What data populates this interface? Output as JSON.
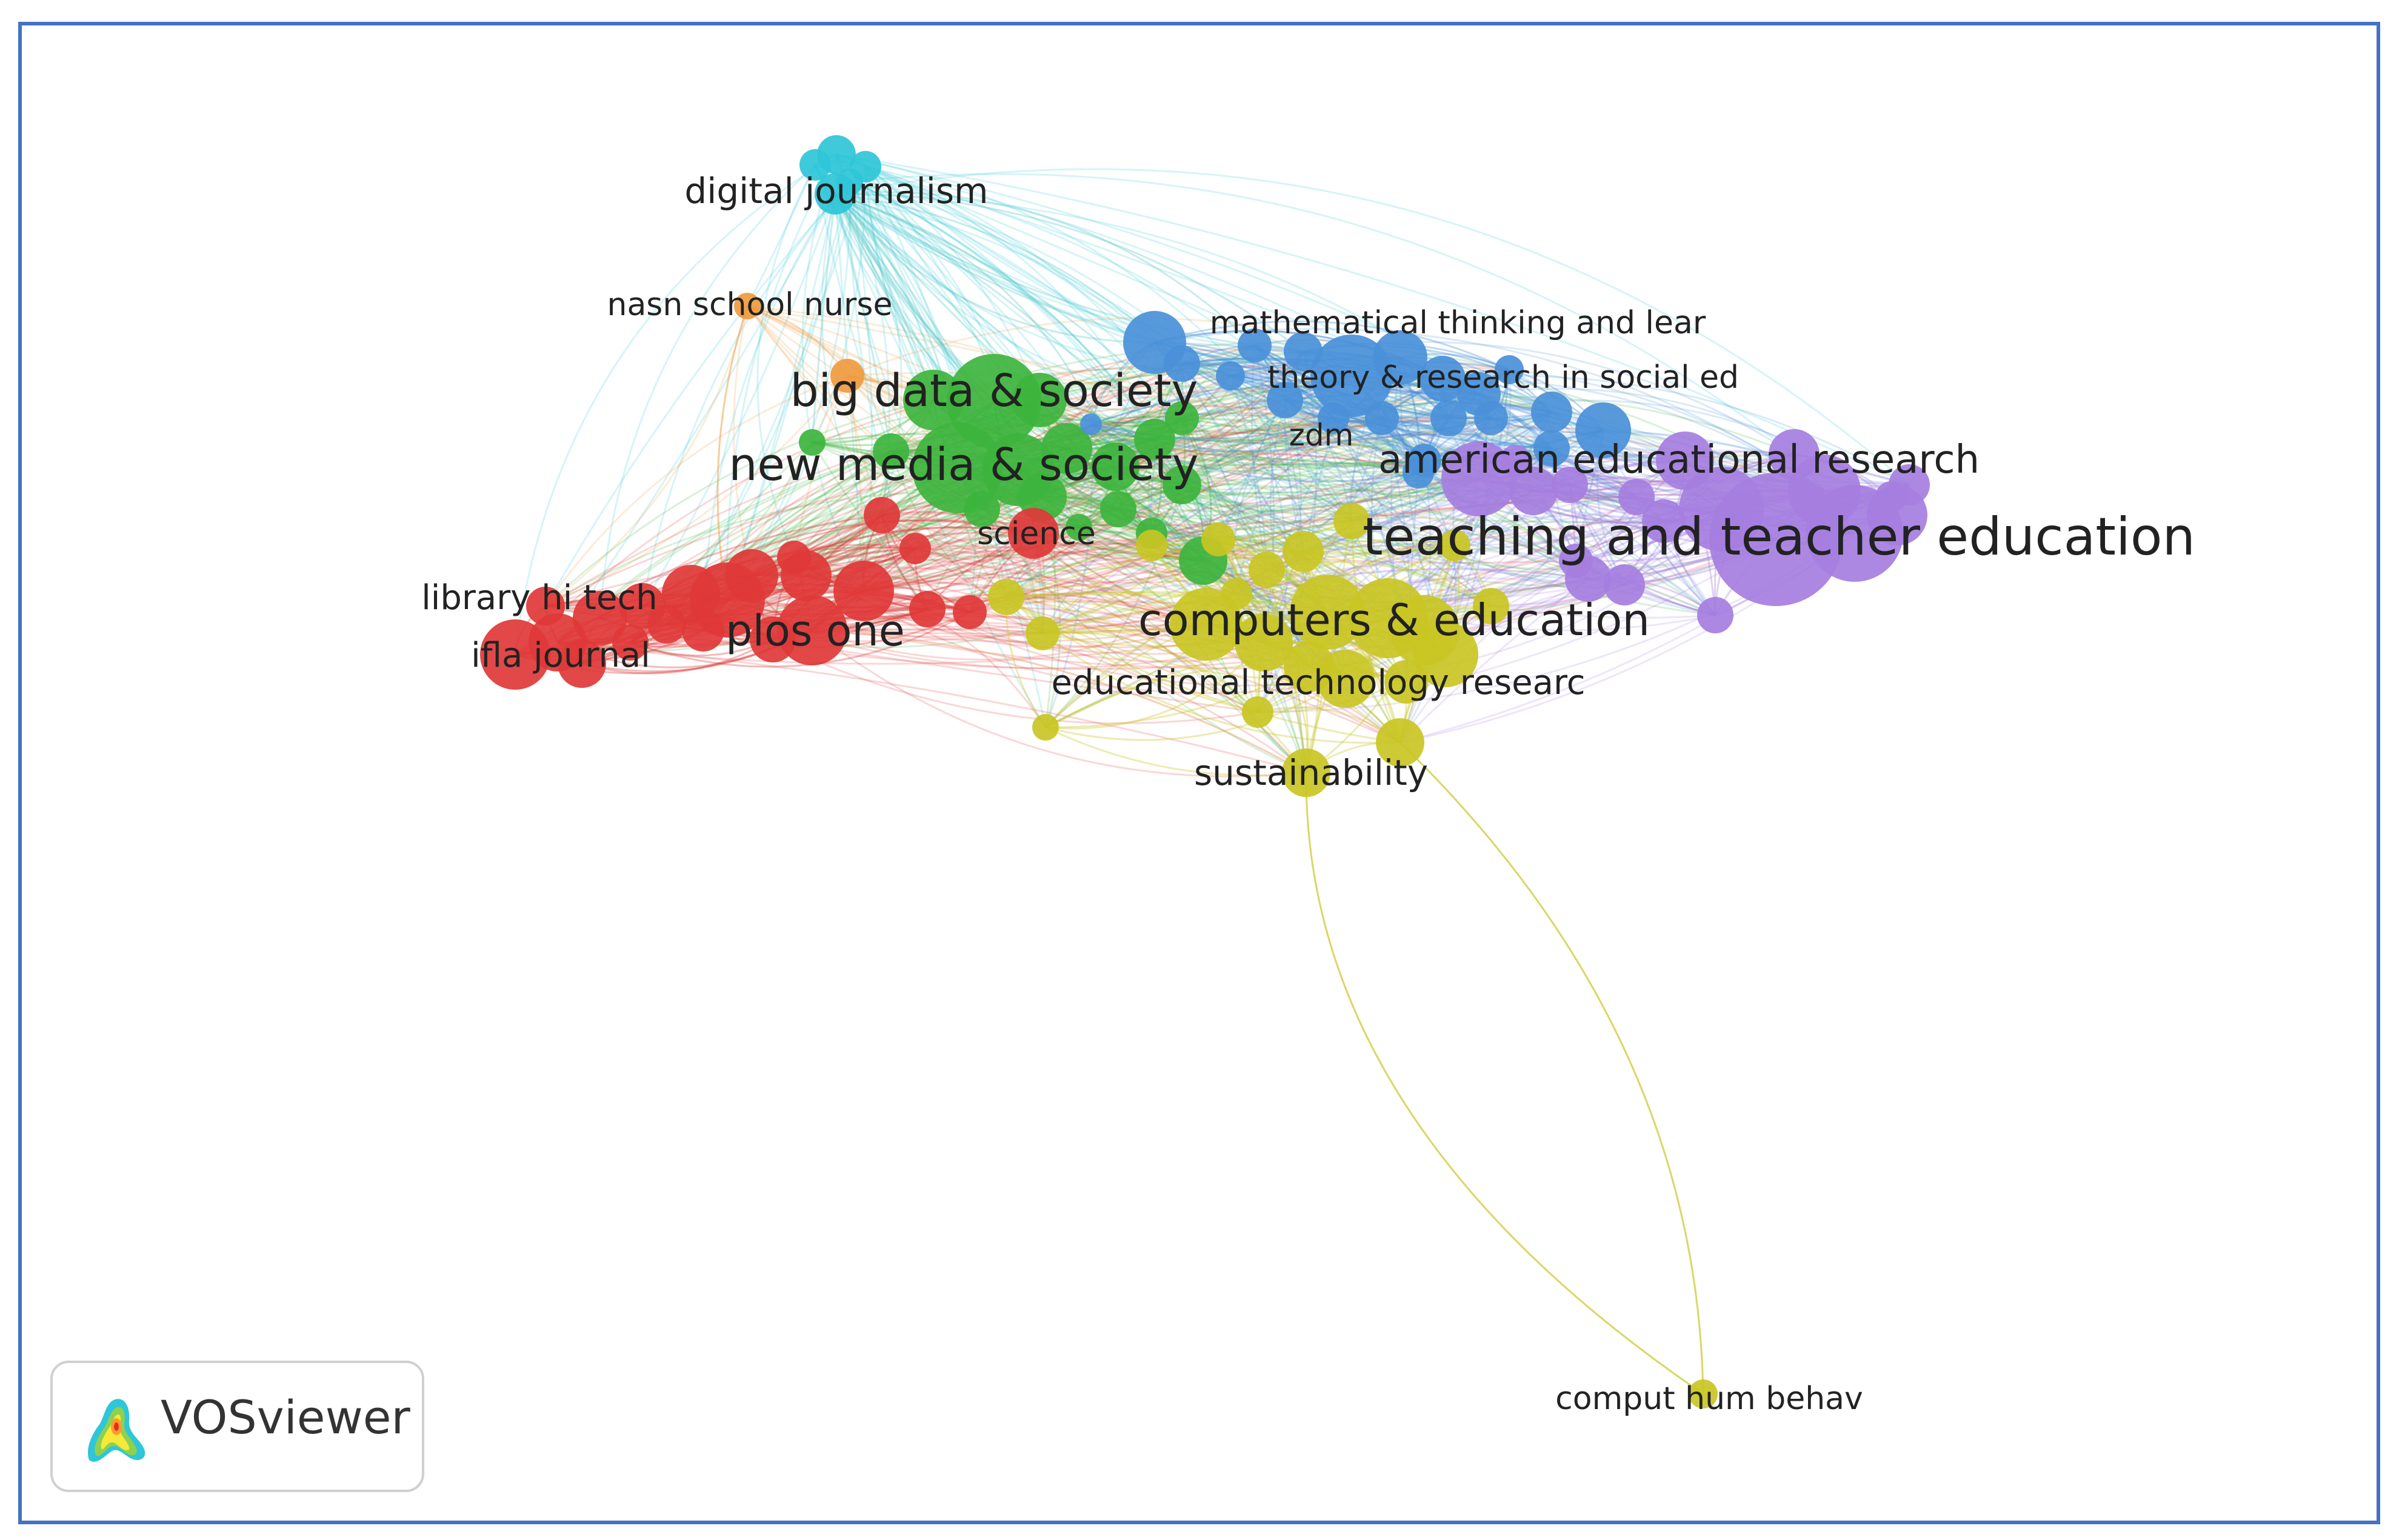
{
  "brand": {
    "name": "VOSviewer"
  },
  "colors": {
    "frame": "#4472c4",
    "cluster-red": "#e03838",
    "cluster-green": "#3db43d",
    "cluster-blue": "#4a90d9",
    "cluster-yellow": "#c9c624",
    "cluster-purple": "#a57ee0",
    "cluster-cyan": "#2ec6d8",
    "cluster-orange": "#f09a3e"
  },
  "labels": [
    {
      "id": "digital-journalism",
      "text": "digital journalism",
      "cluster": "cyan"
    },
    {
      "id": "nasn-school-nurse",
      "text": "nasn school nurse",
      "cluster": "orange"
    },
    {
      "id": "big-data-society",
      "text": "big data & society",
      "cluster": "green"
    },
    {
      "id": "new-media-society",
      "text": "new media & society",
      "cluster": "green"
    },
    {
      "id": "science",
      "text": "science",
      "cluster": "red"
    },
    {
      "id": "library-hi-tech",
      "text": "library hi tech",
      "cluster": "red"
    },
    {
      "id": "plos-one",
      "text": "plos one",
      "cluster": "red"
    },
    {
      "id": "ifla-journal",
      "text": "ifla journal",
      "cluster": "red"
    },
    {
      "id": "mathematical-thinking",
      "text": "mathematical thinking and lear",
      "cluster": "blue"
    },
    {
      "id": "theory-research",
      "text": "theory & research in social ed",
      "cluster": "blue"
    },
    {
      "id": "zdm",
      "text": "zdm",
      "cluster": "blue"
    },
    {
      "id": "american-educational-research",
      "text": "american educational research",
      "cluster": "purple"
    },
    {
      "id": "teaching-teacher-education",
      "text": "teaching and teacher education",
      "cluster": "purple"
    },
    {
      "id": "computers-education",
      "text": "computers & education",
      "cluster": "yellow"
    },
    {
      "id": "educational-technology-research",
      "text": "educational technology researc",
      "cluster": "yellow"
    },
    {
      "id": "sustainability",
      "text": "sustainability",
      "cluster": "yellow"
    },
    {
      "id": "comput-hum-behav",
      "text": "comput hum behav",
      "cluster": "yellow"
    }
  ]
}
